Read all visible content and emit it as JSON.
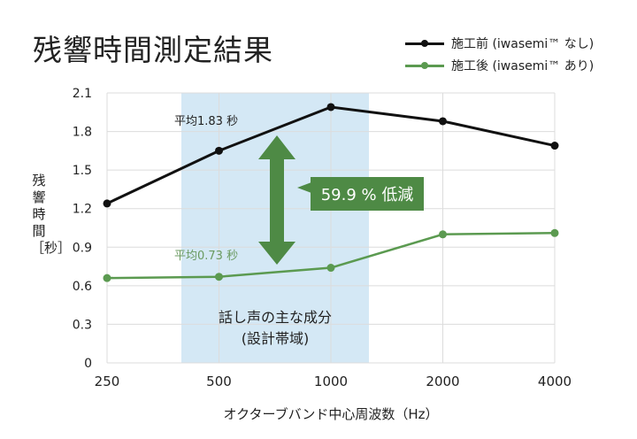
{
  "title": "残響時間測定結果",
  "colors": {
    "before": "#111111",
    "after": "#4e8a45",
    "band": "#d4e8f5",
    "callout": "#4e8a45",
    "grid": "#dddddd"
  },
  "chart_data": {
    "type": "line",
    "title": "残響時間測定結果",
    "xlabel": "オクターブバンド中心周波数（Hz）",
    "ylabel": "残響時間［秒］",
    "x": [
      "250",
      "500",
      "1000",
      "2000",
      "4000"
    ],
    "ylim": [
      0,
      2.1
    ],
    "yticks": [
      "0",
      "0.3",
      "0.6",
      "0.9",
      "1.2",
      "1.5",
      "1.8",
      "2.1"
    ],
    "grid": true,
    "legend_placement": "top-right",
    "series": [
      {
        "name": "施工前 (iwasemi™ なし)",
        "values": [
          1.24,
          1.65,
          1.99,
          1.88,
          1.69
        ]
      },
      {
        "name": "施工後 (iwasemi™ あり)",
        "values": [
          0.66,
          0.67,
          0.74,
          1.0,
          1.01
        ]
      }
    ],
    "annotations": {
      "avg_before": "平均1.83 秒",
      "avg_after": "平均0.73 秒",
      "reduction": "59.9 % 低減",
      "band_label_1": "話し声の主な成分",
      "band_label_2": "(設計帯域)"
    }
  }
}
